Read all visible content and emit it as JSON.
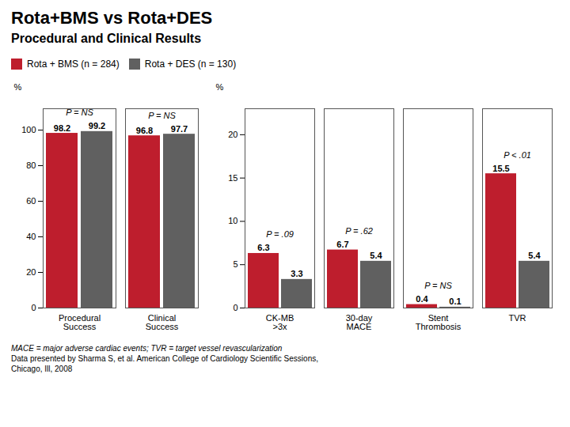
{
  "title": "Rota+BMS vs Rota+DES",
  "subtitle": "Procedural and Clinical Results",
  "legend": "top",
  "chart_data": [
    {
      "type": "bar",
      "categories": [
        "Procedural\nSuccess",
        "Clinical\nSuccess"
      ],
      "series": [
        {
          "name": "Rota + BMS (n = 284)",
          "color": "#be1e2d",
          "values": [
            98.2,
            96.8
          ]
        },
        {
          "name": "Rota + DES (n = 130)",
          "color": "#606060",
          "values": [
            99.2,
            97.7
          ]
        }
      ],
      "ylabel": "%",
      "ylim": [
        0,
        112
      ],
      "yticks": [
        0,
        20,
        40,
        60,
        80,
        100
      ],
      "data_labels": true,
      "annotations": [
        "P = NS",
        "P = NS"
      ]
    },
    {
      "type": "bar",
      "categories": [
        "CK-MB\n>3x",
        "30-day\nMACE",
        "Stent\nThrombosis",
        "TVR"
      ],
      "series": [
        {
          "name": "Rota + BMS (n = 284)",
          "color": "#be1e2d",
          "values": [
            6.3,
            6.7,
            0.4,
            15.5
          ]
        },
        {
          "name": "Rota + DES (n = 130)",
          "color": "#606060",
          "values": [
            3.3,
            5.4,
            0.1,
            5.4
          ]
        }
      ],
      "ylabel": "%",
      "ylim": [
        0,
        23
      ],
      "yticks": [
        0,
        5,
        10,
        15,
        20
      ],
      "data_labels": true,
      "annotations": [
        "P = .09",
        "P = .62",
        "P = NS",
        "P < .01"
      ]
    }
  ],
  "notes": [
    "MACE = major adverse cardiac events; TVR = target vessel revascularization",
    "Data presented by Sharma S, et al. American College of Cardiology Scientific Sessions,",
    "Chicago, Ill, 2008"
  ]
}
